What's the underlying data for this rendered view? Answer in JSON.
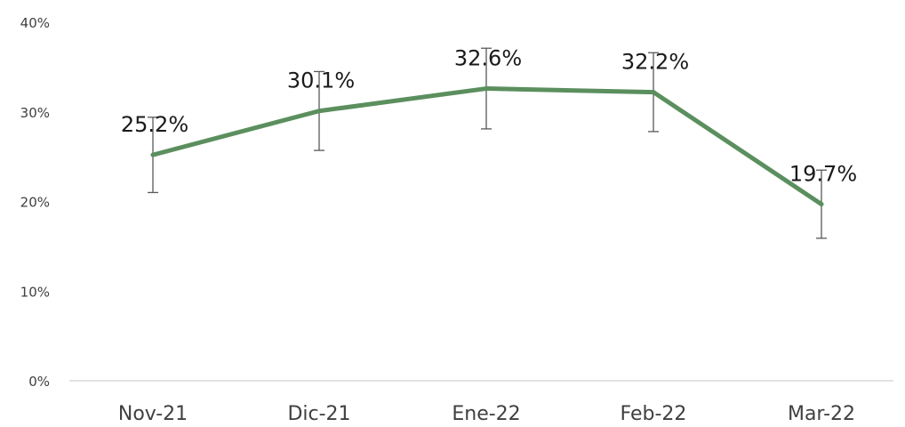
{
  "chart_data": {
    "type": "line",
    "title": "",
    "xlabel": "",
    "ylabel": "",
    "categories": [
      "Nov-21",
      "Dic-21",
      "Ene-22",
      "Feb-22",
      "Mar-22"
    ],
    "series": [
      {
        "values": [
          25.2,
          30.1,
          32.6,
          32.2,
          19.7
        ],
        "error_low": [
          21.0,
          25.7,
          28.1,
          27.8,
          15.9
        ],
        "error_high": [
          29.4,
          34.5,
          37.1,
          36.6,
          23.5
        ],
        "color": "#5B8F5E",
        "data_labels": [
          "25.2%",
          "30.1%",
          "32.6%",
          "32.2%",
          "19.7%"
        ]
      }
    ],
    "ylim": [
      0,
      40
    ],
    "yticks": [
      0,
      10,
      20,
      30,
      40
    ],
    "ytick_labels": [
      "0%",
      "10%",
      "20%",
      "30%",
      "40%"
    ],
    "grid": false,
    "legend": "none",
    "axis_color": "#d9d9d9",
    "errorbar_color": "#595959"
  }
}
